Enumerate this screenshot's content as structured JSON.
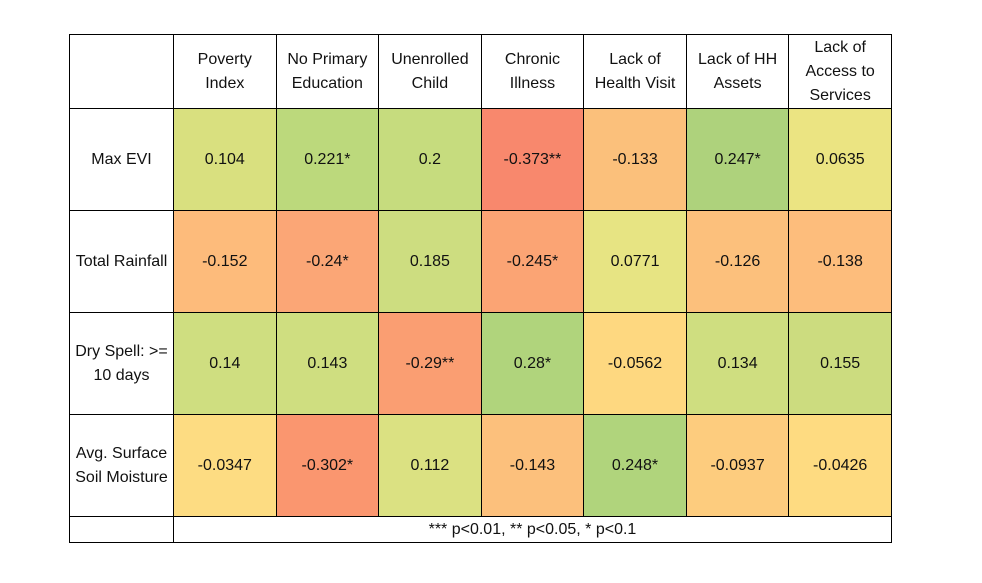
{
  "chart_data": {
    "type": "table",
    "columns": [
      "Poverty Index",
      "No Primary Education",
      "Unenrolled Child",
      "Chronic Illness",
      "Lack of Health Visit",
      "Lack of HH Assets",
      "Lack of Access to Services"
    ],
    "rows": [
      {
        "label": "Max EVI",
        "values": [
          "0.104",
          "0.221*",
          "0.2",
          "-0.373**",
          "-0.133",
          "0.247*",
          "0.0635"
        ]
      },
      {
        "label": "Total Rainfall",
        "values": [
          "-0.152",
          "-0.24*",
          "0.185",
          "-0.245*",
          "0.0771",
          "-0.126",
          "-0.138"
        ]
      },
      {
        "label": "Dry Spell: >= 10 days",
        "values": [
          "0.14",
          "0.143",
          "-0.29**",
          "0.28*",
          "-0.0562",
          "0.134",
          "0.155"
        ]
      },
      {
        "label": "Avg. Surface Soil Moisture",
        "values": [
          "-0.0347",
          "-0.302*",
          "0.112",
          "-0.143",
          "0.248*",
          "-0.0937",
          "-0.0426"
        ]
      }
    ],
    "cell_colors": [
      [
        "#d9e07f",
        "#bcd97c",
        "#c6dc7e",
        "#f8886d",
        "#fbc07b",
        "#aed27c",
        "#ebe482"
      ],
      [
        "#fdbb7b",
        "#fba676",
        "#cddd80",
        "#fba474",
        "#e7e483",
        "#fcc07c",
        "#fdbd7c"
      ],
      [
        "#cfde80",
        "#cfde80",
        "#fa9e72",
        "#b0d47c",
        "#fed880",
        "#cfde80",
        "#ccdc7f"
      ],
      [
        "#fddc82",
        "#fa966f",
        "#dbe182",
        "#fcc07c",
        "#b0d47c",
        "#fdcc7e",
        "#fedb81"
      ]
    ],
    "footnote": "*** p<0.01, ** p<0.05, * p<0.1"
  }
}
